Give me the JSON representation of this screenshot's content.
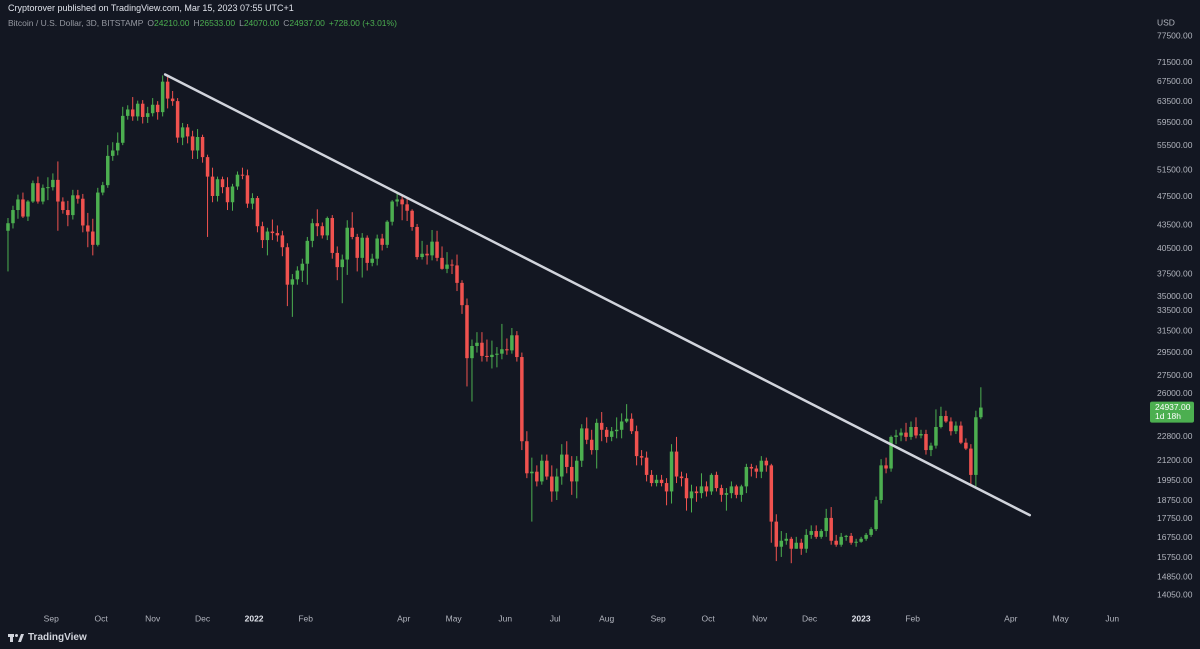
{
  "chart_data": {
    "type": "candlestick",
    "header": {
      "publisher": "Cryptorover published on TradingView.com, Mar 15, 2023 07:55 UTC+1",
      "symbol": "Bitcoin / U.S. Dollar, 3D, BITSTAMP",
      "legend": [
        {
          "key": "O",
          "value": "24210.00"
        },
        {
          "key": "H",
          "value": "26533.00"
        },
        {
          "key": "L",
          "value": "24070.00"
        },
        {
          "key": "C",
          "value": "24937.00"
        }
      ],
      "change": "+728.00 (+3.01%)"
    },
    "currency": "USD",
    "brand": "TradingView",
    "last_price": {
      "value": 24937,
      "label": "24937.00"
    },
    "countdown": "1d 18h",
    "up_color": "#4caf50",
    "down_color": "#f0524f",
    "log_scale": true,
    "grid": false,
    "ylim": [
      13600,
      83000
    ],
    "yticks": [
      {
        "value": 77500,
        "label": "77500.00"
      },
      {
        "value": 71500,
        "label": "71500.00"
      },
      {
        "value": 67500,
        "label": "67500.00"
      },
      {
        "value": 63500,
        "label": "63500.00"
      },
      {
        "value": 59500,
        "label": "59500.00"
      },
      {
        "value": 55500,
        "label": "55500.00"
      },
      {
        "value": 51500,
        "label": "51500.00"
      },
      {
        "value": 47500,
        "label": "47500.00"
      },
      {
        "value": 43500,
        "label": "43500.00"
      },
      {
        "value": 40500,
        "label": "40500.00"
      },
      {
        "value": 37500,
        "label": "37500.00"
      },
      {
        "value": 35000,
        "label": "35000.00"
      },
      {
        "value": 33500,
        "label": "33500.00"
      },
      {
        "value": 31500,
        "label": "31500.00"
      },
      {
        "value": 29500,
        "label": "29500.00"
      },
      {
        "value": 27500,
        "label": "27500.00"
      },
      {
        "value": 26000,
        "label": "26000.00"
      },
      {
        "value": 22800,
        "label": "22800.00"
      },
      {
        "value": 21200,
        "label": "21200.00"
      },
      {
        "value": 19950,
        "label": "19950.00"
      },
      {
        "value": 18750,
        "label": "18750.00"
      },
      {
        "value": 17750,
        "label": "17750.00"
      },
      {
        "value": 16750,
        "label": "16750.00"
      },
      {
        "value": 15750,
        "label": "15750.00"
      },
      {
        "value": 14850,
        "label": "14850.00"
      },
      {
        "value": 14050,
        "label": "14050.00"
      }
    ],
    "xlim": [
      -1.6,
      227.9
    ],
    "xticks": [
      {
        "value": 8.67,
        "label": "Sep"
      },
      {
        "value": 18.67,
        "label": "Oct"
      },
      {
        "value": 29,
        "label": "Nov"
      },
      {
        "value": 39,
        "label": "Dec"
      },
      {
        "value": 49.33,
        "label": "2022"
      },
      {
        "value": 59.67,
        "label": "Feb"
      },
      {
        "value": 79.33,
        "label": "Apr"
      },
      {
        "value": 89.33,
        "label": "May"
      },
      {
        "value": 99.67,
        "label": "Jun"
      },
      {
        "value": 109.67,
        "label": "Jul"
      },
      {
        "value": 120,
        "label": "Aug"
      },
      {
        "value": 130.33,
        "label": "Sep"
      },
      {
        "value": 140.33,
        "label": "Oct"
      },
      {
        "value": 150.67,
        "label": "Nov"
      },
      {
        "value": 160.67,
        "label": "Dec"
      },
      {
        "value": 171,
        "label": "2023"
      },
      {
        "value": 181.33,
        "label": "Feb"
      },
      {
        "value": 201,
        "label": "Apr"
      },
      {
        "value": 211,
        "label": "May"
      },
      {
        "value": 221.33,
        "label": "Jun"
      }
    ],
    "trendline": {
      "color": "#d1d4dc",
      "x": [
        31.5,
        204.8
      ],
      "y": [
        69000,
        17950
      ]
    },
    "open": [
      42800,
      43800,
      45600,
      47100,
      44700,
      46800,
      49500,
      46800,
      48800,
      48900,
      50000,
      46800,
      45600,
      44900,
      47700,
      47200,
      43500,
      42700,
      41000,
      48100,
      49200,
      53800,
      54700,
      56000,
      60800,
      62000,
      60700,
      63100,
      60600,
      61300,
      62900,
      61500,
      67500,
      64100,
      63600,
      56900,
      58700,
      57100,
      54700,
      57000,
      53600,
      50500,
      47600,
      50100,
      48900,
      46700,
      49000,
      50800,
      50700,
      46500,
      47300,
      43400,
      41600,
      42700,
      42500,
      42200,
      40700,
      36300,
      36900,
      37900,
      38700,
      41500,
      43800,
      43400,
      42200,
      44500,
      40000,
      38300,
      39200,
      43200,
      42000,
      39400,
      41900,
      38800,
      39300,
      41800,
      41000,
      44000,
      46800,
      47100,
      46400,
      45500,
      43300,
      39500,
      39900,
      39700,
      41400,
      39400,
      38100,
      38600,
      38500,
      36500,
      34100,
      29000,
      30100,
      30400,
      29200,
      29100,
      29300,
      29400,
      29800,
      29700,
      31100,
      29100,
      22500,
      20400,
      20500,
      19900,
      21200,
      20200,
      19300,
      20200,
      21600,
      20800,
      19900,
      21200,
      23400,
      22600,
      21900,
      23800,
      23300,
      22800,
      23200,
      23300,
      23900,
      24100,
      23200,
      21500,
      21400,
      20300,
      19800,
      20000,
      19800,
      19300,
      21800,
      20200,
      20100,
      18900,
      19300,
      19200,
      19600,
      19300,
      20300,
      19500,
      19100,
      19200,
      19600,
      19100,
      19600,
      20800,
      20700,
      20500,
      21200,
      20900,
      17600,
      16300,
      16600,
      16700,
      16200,
      16500,
      16200,
      16900,
      17100,
      16800,
      17100,
      17800,
      16600,
      16400,
      16800,
      16850,
      16500,
      16550,
      16700,
      16900,
      17200,
      18800,
      20900,
      20700,
      22800,
      22900,
      23100,
      22800,
      23500,
      22900,
      23000,
      21900,
      22200,
      23500,
      24300,
      23900,
      23200,
      23600,
      22400,
      22000,
      20300,
      24210
    ],
    "high": [
      44500,
      46200,
      47800,
      48100,
      47000,
      49900,
      50500,
      49300,
      50400,
      51000,
      52900,
      47400,
      46900,
      48500,
      48500,
      47900,
      45200,
      44400,
      48800,
      49700,
      55600,
      56100,
      57800,
      62500,
      62800,
      64400,
      63700,
      63800,
      62500,
      64200,
      63600,
      68800,
      69000,
      65600,
      64200,
      59500,
      59300,
      58100,
      58400,
      57400,
      54000,
      51900,
      50500,
      50500,
      50400,
      49400,
      51300,
      51900,
      51600,
      48000,
      47600,
      44000,
      43200,
      44300,
      43500,
      42800,
      41200,
      37500,
      38400,
      39300,
      42000,
      44400,
      45700,
      43900,
      44700,
      44900,
      40800,
      39800,
      44200,
      45300,
      42400,
      42500,
      42200,
      39900,
      42300,
      42400,
      44200,
      47000,
      48100,
      47700,
      47200,
      45700,
      43700,
      41500,
      41000,
      42900,
      42800,
      40800,
      40100,
      39200,
      39800,
      36800,
      34800,
      30700,
      31400,
      31400,
      30700,
      30600,
      30000,
      32200,
      30800,
      31800,
      31500,
      29500,
      23200,
      21400,
      20900,
      21600,
      21600,
      20900,
      20700,
      22300,
      22500,
      21500,
      21500,
      23700,
      24200,
      23300,
      24100,
      24600,
      23500,
      23500,
      24200,
      24500,
      25200,
      24500,
      23600,
      21900,
      21800,
      20600,
      20300,
      20300,
      20100,
      22300,
      22800,
      20500,
      20400,
      19700,
      19600,
      20400,
      19900,
      20400,
      20500,
      19700,
      19500,
      19900,
      19700,
      19700,
      21000,
      21000,
      20900,
      21500,
      21400,
      21000,
      18000,
      17100,
      17000,
      16800,
      16800,
      16700,
      17200,
      17400,
      17400,
      17200,
      18300,
      18400,
      16900,
      17000,
      16900,
      17000,
      16700,
      16800,
      17000,
      17300,
      19000,
      21300,
      21400,
      22900,
      23300,
      23400,
      23800,
      23900,
      24200,
      23300,
      23300,
      22400,
      24800,
      25000,
      24700,
      24200,
      23900,
      23900,
      22700,
      22300,
      24700,
      26533
    ],
    "low": [
      37800,
      43100,
      44400,
      44500,
      44100,
      46600,
      46500,
      46400,
      47000,
      48400,
      42800,
      45100,
      43400,
      44300,
      46500,
      42600,
      40700,
      39700,
      40800,
      47700,
      48800,
      53000,
      53900,
      55600,
      60100,
      59900,
      59900,
      59400,
      59500,
      60700,
      60100,
      60700,
      62200,
      62700,
      56000,
      55600,
      55900,
      53300,
      53300,
      52700,
      42000,
      46700,
      46800,
      48000,
      45600,
      45500,
      48500,
      50100,
      45900,
      45700,
      42600,
      40600,
      39700,
      41600,
      41400,
      39600,
      34000,
      32900,
      36300,
      36600,
      36300,
      40700,
      42100,
      41800,
      41600,
      39300,
      36800,
      34300,
      37400,
      41700,
      37800,
      37100,
      37900,
      38400,
      38500,
      40300,
      40600,
      43500,
      46100,
      44200,
      44100,
      42800,
      39200,
      39200,
      38600,
      39100,
      39000,
      38000,
      37600,
      37500,
      35600,
      33200,
      26600,
      25400,
      29500,
      28700,
      28700,
      28100,
      28200,
      28900,
      29300,
      29400,
      28700,
      21900,
      20100,
      17600,
      19600,
      19700,
      20000,
      18700,
      18800,
      19700,
      20400,
      19100,
      18900,
      20800,
      22300,
      21600,
      20700,
      22500,
      22400,
      22500,
      22700,
      22700,
      23800,
      23000,
      20900,
      20900,
      19900,
      19600,
      19600,
      19600,
      18500,
      18600,
      19800,
      19600,
      18200,
      18100,
      18700,
      18900,
      19000,
      19100,
      19300,
      18700,
      18200,
      18900,
      18900,
      18700,
      19200,
      20200,
      20100,
      20100,
      20500,
      16500,
      15600,
      15800,
      16400,
      15500,
      16200,
      15900,
      16000,
      16700,
      16700,
      16700,
      16800,
      16400,
      16300,
      16300,
      16600,
      16400,
      16300,
      16500,
      16600,
      16800,
      17100,
      18600,
      20400,
      20500,
      22300,
      22500,
      22500,
      22600,
      22700,
      22700,
      21600,
      21500,
      22000,
      23400,
      23800,
      22900,
      23000,
      22300,
      21900,
      19600,
      19600,
      24070
    ],
    "close": [
      43800,
      45600,
      47100,
      44700,
      46800,
      49500,
      46800,
      48800,
      48900,
      50000,
      46800,
      45600,
      44900,
      47700,
      47200,
      43500,
      42700,
      41000,
      48100,
      49200,
      53800,
      54700,
      56000,
      60800,
      62000,
      60700,
      63100,
      60600,
      61300,
      62900,
      61500,
      67500,
      64100,
      63600,
      56900,
      58700,
      57100,
      54700,
      57000,
      53600,
      50500,
      47600,
      50100,
      48900,
      46700,
      49000,
      50800,
      50700,
      46500,
      47300,
      43400,
      41600,
      42700,
      42500,
      42200,
      40700,
      36300,
      36900,
      37900,
      38700,
      41500,
      43800,
      43400,
      42200,
      44500,
      40000,
      38300,
      39200,
      43200,
      42000,
      39400,
      41900,
      38800,
      39300,
      41800,
      41000,
      44000,
      46800,
      47100,
      46400,
      45500,
      43300,
      39500,
      39900,
      39700,
      41400,
      39400,
      38100,
      38600,
      38500,
      36500,
      34100,
      29000,
      30100,
      30400,
      29200,
      29100,
      29300,
      29400,
      29800,
      29700,
      31100,
      29100,
      22500,
      20400,
      20500,
      19900,
      21200,
      20200,
      19300,
      20200,
      21600,
      20800,
      19900,
      21200,
      23400,
      22600,
      21900,
      23800,
      23300,
      22800,
      23200,
      23300,
      23900,
      24100,
      23200,
      21500,
      21400,
      20300,
      19800,
      20000,
      19800,
      19300,
      21800,
      20200,
      20100,
      18900,
      19300,
      19200,
      19600,
      19300,
      20300,
      19500,
      19100,
      19200,
      19600,
      19100,
      19600,
      20800,
      20700,
      20500,
      21200,
      20900,
      17600,
      16300,
      16600,
      16700,
      16200,
      16500,
      16200,
      16900,
      17100,
      16800,
      17100,
      17800,
      16600,
      16400,
      16800,
      16850,
      16500,
      16550,
      16700,
      16900,
      17200,
      18800,
      20900,
      20700,
      22800,
      22900,
      23100,
      22800,
      23500,
      22900,
      23000,
      21900,
      22200,
      23500,
      24300,
      23900,
      23200,
      23600,
      22400,
      22000,
      20300,
      24210,
      24937
    ]
  }
}
